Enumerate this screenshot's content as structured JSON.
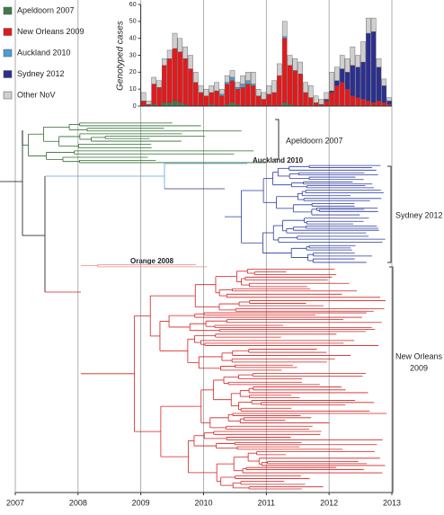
{
  "chart_data": {
    "type": "bar",
    "stacked": true,
    "y_label": "Genotyped cases",
    "x": [
      2009.042,
      2009.125,
      2009.208,
      2009.292,
      2009.375,
      2009.458,
      2009.542,
      2009.625,
      2009.708,
      2009.792,
      2009.875,
      2009.958,
      2010.042,
      2010.125,
      2010.208,
      2010.292,
      2010.375,
      2010.458,
      2010.542,
      2010.625,
      2010.708,
      2010.792,
      2010.875,
      2010.958,
      2011.042,
      2011.125,
      2011.208,
      2011.292,
      2011.375,
      2011.458,
      2011.542,
      2011.625,
      2011.708,
      2011.792,
      2011.875,
      2011.958,
      2012.042,
      2012.125,
      2012.208,
      2012.292,
      2012.375,
      2012.458,
      2012.542,
      2012.625,
      2012.708,
      2012.792,
      2012.875,
      2012.958
    ],
    "series": [
      {
        "name": "Apeldoorn 2007",
        "color": "#3f7a4a",
        "values": [
          0,
          0,
          1,
          0,
          2,
          2,
          3,
          2,
          1,
          0,
          0,
          0,
          0,
          1,
          0,
          0,
          1,
          2,
          1,
          0,
          0,
          0,
          0,
          0,
          0,
          0,
          0,
          2,
          1,
          0,
          0,
          0,
          0,
          0,
          0,
          0,
          0,
          0,
          0,
          0,
          0,
          0,
          0,
          0,
          0,
          0,
          0,
          0
        ]
      },
      {
        "name": "New Orleans 2009",
        "color": "#e3191c",
        "values": [
          3,
          1,
          12,
          11,
          22,
          26,
          31,
          30,
          27,
          22,
          14,
          8,
          6,
          7,
          9,
          6,
          12,
          13,
          9,
          11,
          13,
          12,
          6,
          4,
          7,
          8,
          18,
          38,
          23,
          21,
          19,
          8,
          5,
          2,
          1,
          3,
          8,
          12,
          14,
          10,
          6,
          5,
          4,
          3,
          2,
          3,
          2,
          1
        ]
      },
      {
        "name": "Auckland 2010",
        "color": "#4a9fd4",
        "values": [
          0,
          0,
          0,
          0,
          0,
          0,
          0,
          0,
          0,
          0,
          0,
          0,
          0,
          0,
          0,
          1,
          1,
          2,
          1,
          2,
          2,
          1,
          0,
          0,
          0,
          0,
          0,
          1,
          0,
          0,
          0,
          0,
          0,
          0,
          0,
          0,
          0,
          0,
          0,
          0,
          0,
          0,
          0,
          0,
          0,
          0,
          0,
          0
        ]
      },
      {
        "name": "Sydney 2012",
        "color": "#2b2f8f",
        "values": [
          0,
          0,
          0,
          0,
          0,
          0,
          0,
          0,
          0,
          0,
          0,
          0,
          0,
          0,
          0,
          0,
          0,
          0,
          0,
          0,
          0,
          0,
          0,
          0,
          0,
          0,
          0,
          0,
          0,
          0,
          0,
          0,
          0,
          0,
          0,
          1,
          1,
          3,
          8,
          10,
          18,
          18,
          22,
          40,
          42,
          20,
          10,
          2
        ]
      },
      {
        "name": "Other NoV",
        "color": "#cfcfcf",
        "values": [
          5,
          2,
          4,
          4,
          4,
          5,
          9,
          8,
          7,
          8,
          6,
          4,
          4,
          4,
          5,
          3,
          4,
          4,
          3,
          5,
          5,
          7,
          4,
          4,
          5,
          7,
          7,
          9,
          6,
          7,
          7,
          6,
          7,
          4,
          3,
          4,
          11,
          8,
          8,
          8,
          11,
          7,
          12,
          9,
          8,
          5,
          4,
          2
        ]
      }
    ],
    "xlim": [
      2007,
      2013
    ],
    "xticks": [
      2007,
      2008,
      2009,
      2010,
      2011,
      2012,
      2013
    ],
    "ylim": [
      0,
      60
    ],
    "yticks": [
      0,
      10,
      20,
      30,
      40,
      50,
      60
    ],
    "grid": true,
    "legend": "top-left",
    "annotations": [
      "Apeldoorn 2007",
      "Auckland 2010",
      "Sydney 2012",
      "Orange 2008",
      "New Orleans",
      "2009"
    ]
  }
}
